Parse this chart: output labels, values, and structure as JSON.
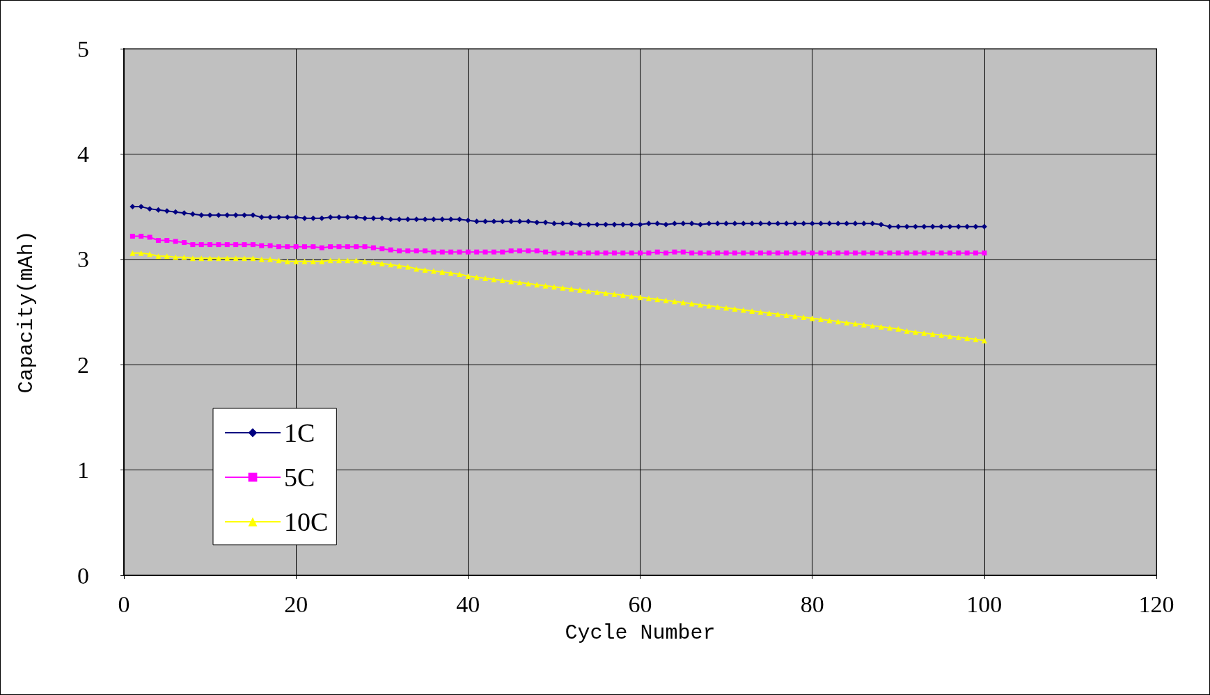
{
  "chart_data": {
    "type": "line",
    "xlabel": "Cycle Number",
    "ylabel": "Capacity(mAh)",
    "x": [
      1,
      2,
      3,
      4,
      5,
      6,
      7,
      8,
      9,
      10,
      11,
      12,
      13,
      14,
      15,
      16,
      17,
      18,
      19,
      20,
      21,
      22,
      23,
      24,
      25,
      26,
      27,
      28,
      29,
      30,
      31,
      32,
      33,
      34,
      35,
      36,
      37,
      38,
      39,
      40,
      41,
      42,
      43,
      44,
      45,
      46,
      47,
      48,
      49,
      50,
      51,
      52,
      53,
      54,
      55,
      56,
      57,
      58,
      59,
      60,
      61,
      62,
      63,
      64,
      65,
      66,
      67,
      68,
      69,
      70,
      71,
      72,
      73,
      74,
      75,
      76,
      77,
      78,
      79,
      80,
      81,
      82,
      83,
      84,
      85,
      86,
      87,
      88,
      89,
      90,
      91,
      92,
      93,
      94,
      95,
      96,
      97,
      98,
      99,
      100
    ],
    "series": [
      {
        "name": "1C",
        "color": "#000080",
        "marker": "diamond",
        "values": [
          3.5,
          3.5,
          3.48,
          3.47,
          3.46,
          3.45,
          3.44,
          3.43,
          3.42,
          3.42,
          3.42,
          3.42,
          3.42,
          3.42,
          3.42,
          3.4,
          3.4,
          3.4,
          3.4,
          3.4,
          3.39,
          3.39,
          3.39,
          3.4,
          3.4,
          3.4,
          3.4,
          3.39,
          3.39,
          3.39,
          3.38,
          3.38,
          3.38,
          3.38,
          3.38,
          3.38,
          3.38,
          3.38,
          3.38,
          3.37,
          3.36,
          3.36,
          3.36,
          3.36,
          3.36,
          3.36,
          3.36,
          3.35,
          3.35,
          3.34,
          3.34,
          3.34,
          3.33,
          3.33,
          3.33,
          3.33,
          3.33,
          3.33,
          3.33,
          3.33,
          3.34,
          3.34,
          3.33,
          3.34,
          3.34,
          3.34,
          3.33,
          3.34,
          3.34,
          3.34,
          3.34,
          3.34,
          3.34,
          3.34,
          3.34,
          3.34,
          3.34,
          3.34,
          3.34,
          3.34,
          3.34,
          3.34,
          3.34,
          3.34,
          3.34,
          3.34,
          3.34,
          3.33,
          3.31,
          3.31,
          3.31,
          3.31,
          3.31,
          3.31,
          3.31,
          3.31,
          3.31,
          3.31,
          3.31,
          3.31
        ]
      },
      {
        "name": "5C",
        "color": "#ff00ff",
        "marker": "square",
        "values": [
          3.22,
          3.22,
          3.21,
          3.18,
          3.18,
          3.17,
          3.16,
          3.14,
          3.14,
          3.14,
          3.14,
          3.14,
          3.14,
          3.14,
          3.14,
          3.13,
          3.13,
          3.12,
          3.12,
          3.12,
          3.12,
          3.12,
          3.11,
          3.12,
          3.12,
          3.12,
          3.12,
          3.12,
          3.11,
          3.1,
          3.09,
          3.08,
          3.08,
          3.08,
          3.08,
          3.07,
          3.07,
          3.07,
          3.07,
          3.07,
          3.07,
          3.07,
          3.07,
          3.07,
          3.08,
          3.08,
          3.08,
          3.08,
          3.07,
          3.06,
          3.06,
          3.06,
          3.06,
          3.06,
          3.06,
          3.06,
          3.06,
          3.06,
          3.06,
          3.06,
          3.06,
          3.07,
          3.06,
          3.07,
          3.07,
          3.06,
          3.06,
          3.06,
          3.06,
          3.06,
          3.06,
          3.06,
          3.06,
          3.06,
          3.06,
          3.06,
          3.06,
          3.06,
          3.06,
          3.06,
          3.06,
          3.06,
          3.06,
          3.06,
          3.06,
          3.06,
          3.06,
          3.06,
          3.06,
          3.06,
          3.06,
          3.06,
          3.06,
          3.06,
          3.06,
          3.06,
          3.06,
          3.06,
          3.06,
          3.06
        ]
      },
      {
        "name": "10C",
        "color": "#ffff00",
        "marker": "triangle",
        "values": [
          3.06,
          3.06,
          3.05,
          3.03,
          3.03,
          3.02,
          3.02,
          3.01,
          3.01,
          3.01,
          3.01,
          3.01,
          3.01,
          3.01,
          3.01,
          3.0,
          3.0,
          2.99,
          2.98,
          2.98,
          2.98,
          2.98,
          2.98,
          2.99,
          2.99,
          2.99,
          2.99,
          2.98,
          2.97,
          2.96,
          2.95,
          2.94,
          2.93,
          2.91,
          2.9,
          2.89,
          2.88,
          2.87,
          2.86,
          2.84,
          2.83,
          2.82,
          2.81,
          2.8,
          2.79,
          2.78,
          2.77,
          2.76,
          2.75,
          2.74,
          2.73,
          2.72,
          2.71,
          2.7,
          2.69,
          2.68,
          2.67,
          2.66,
          2.65,
          2.64,
          2.63,
          2.62,
          2.61,
          2.6,
          2.59,
          2.58,
          2.57,
          2.56,
          2.55,
          2.54,
          2.53,
          2.52,
          2.51,
          2.5,
          2.49,
          2.48,
          2.47,
          2.46,
          2.45,
          2.44,
          2.43,
          2.42,
          2.41,
          2.4,
          2.39,
          2.38,
          2.37,
          2.36,
          2.35,
          2.34,
          2.32,
          2.31,
          2.3,
          2.29,
          2.28,
          2.27,
          2.26,
          2.25,
          2.24,
          2.23
        ]
      }
    ],
    "xlim": [
      0,
      120
    ],
    "xticks": [
      0,
      20,
      40,
      60,
      80,
      100,
      120
    ],
    "ylim": [
      0,
      5
    ],
    "yticks": [
      0,
      1,
      2,
      3,
      4,
      5
    ],
    "grid": true,
    "legend": "bottom left",
    "line_style": "solid"
  }
}
